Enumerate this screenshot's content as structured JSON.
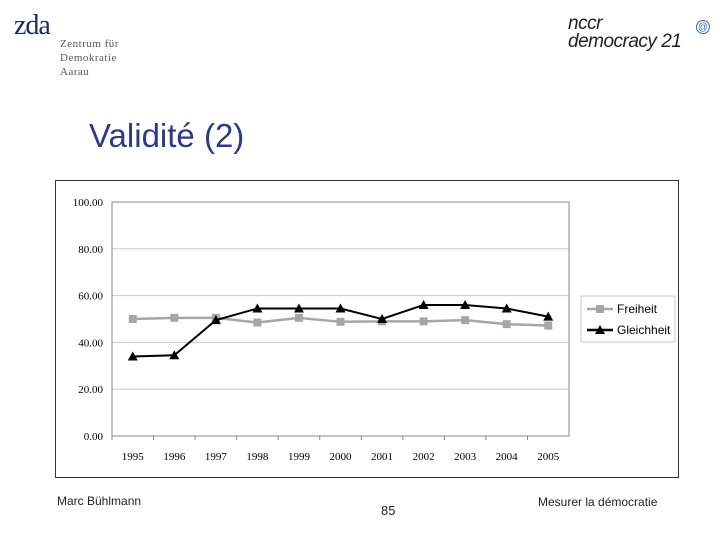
{
  "logos": {
    "zda": {
      "mark": "zda",
      "lines": [
        "Zentrum für",
        "Demokratie",
        "Aarau"
      ]
    },
    "nccr": {
      "line1": "nccr",
      "line2": "democracy 21",
      "at_symbol": "@"
    }
  },
  "slide": {
    "title": "Validité (2)"
  },
  "footer": {
    "author": "Marc Bühlmann",
    "page_number": "85",
    "topic": "Mesurer la démocratie"
  },
  "chart_data": {
    "type": "line",
    "x": [
      "1995",
      "1996",
      "1997",
      "1998",
      "1999",
      "2000",
      "2001",
      "2002",
      "2003",
      "2004",
      "2005"
    ],
    "y_ticks": [
      "0.00",
      "20.00",
      "40.00",
      "60.00",
      "80.00",
      "100.00"
    ],
    "ylim": [
      0,
      100
    ],
    "grid": "horizontal",
    "legend_position": "right",
    "series": [
      {
        "name": "Freiheit",
        "color": "#a6a6a6",
        "marker": "square",
        "values": [
          50,
          50.5,
          50.5,
          48.5,
          50.5,
          48.8,
          49,
          49,
          49.5,
          47.8,
          47.2
        ]
      },
      {
        "name": "Gleichheit",
        "color": "#000000",
        "marker": "triangle",
        "values": [
          34,
          34.5,
          49.5,
          54.5,
          54.5,
          54.5,
          50,
          56,
          56,
          54.5,
          51
        ]
      }
    ]
  }
}
